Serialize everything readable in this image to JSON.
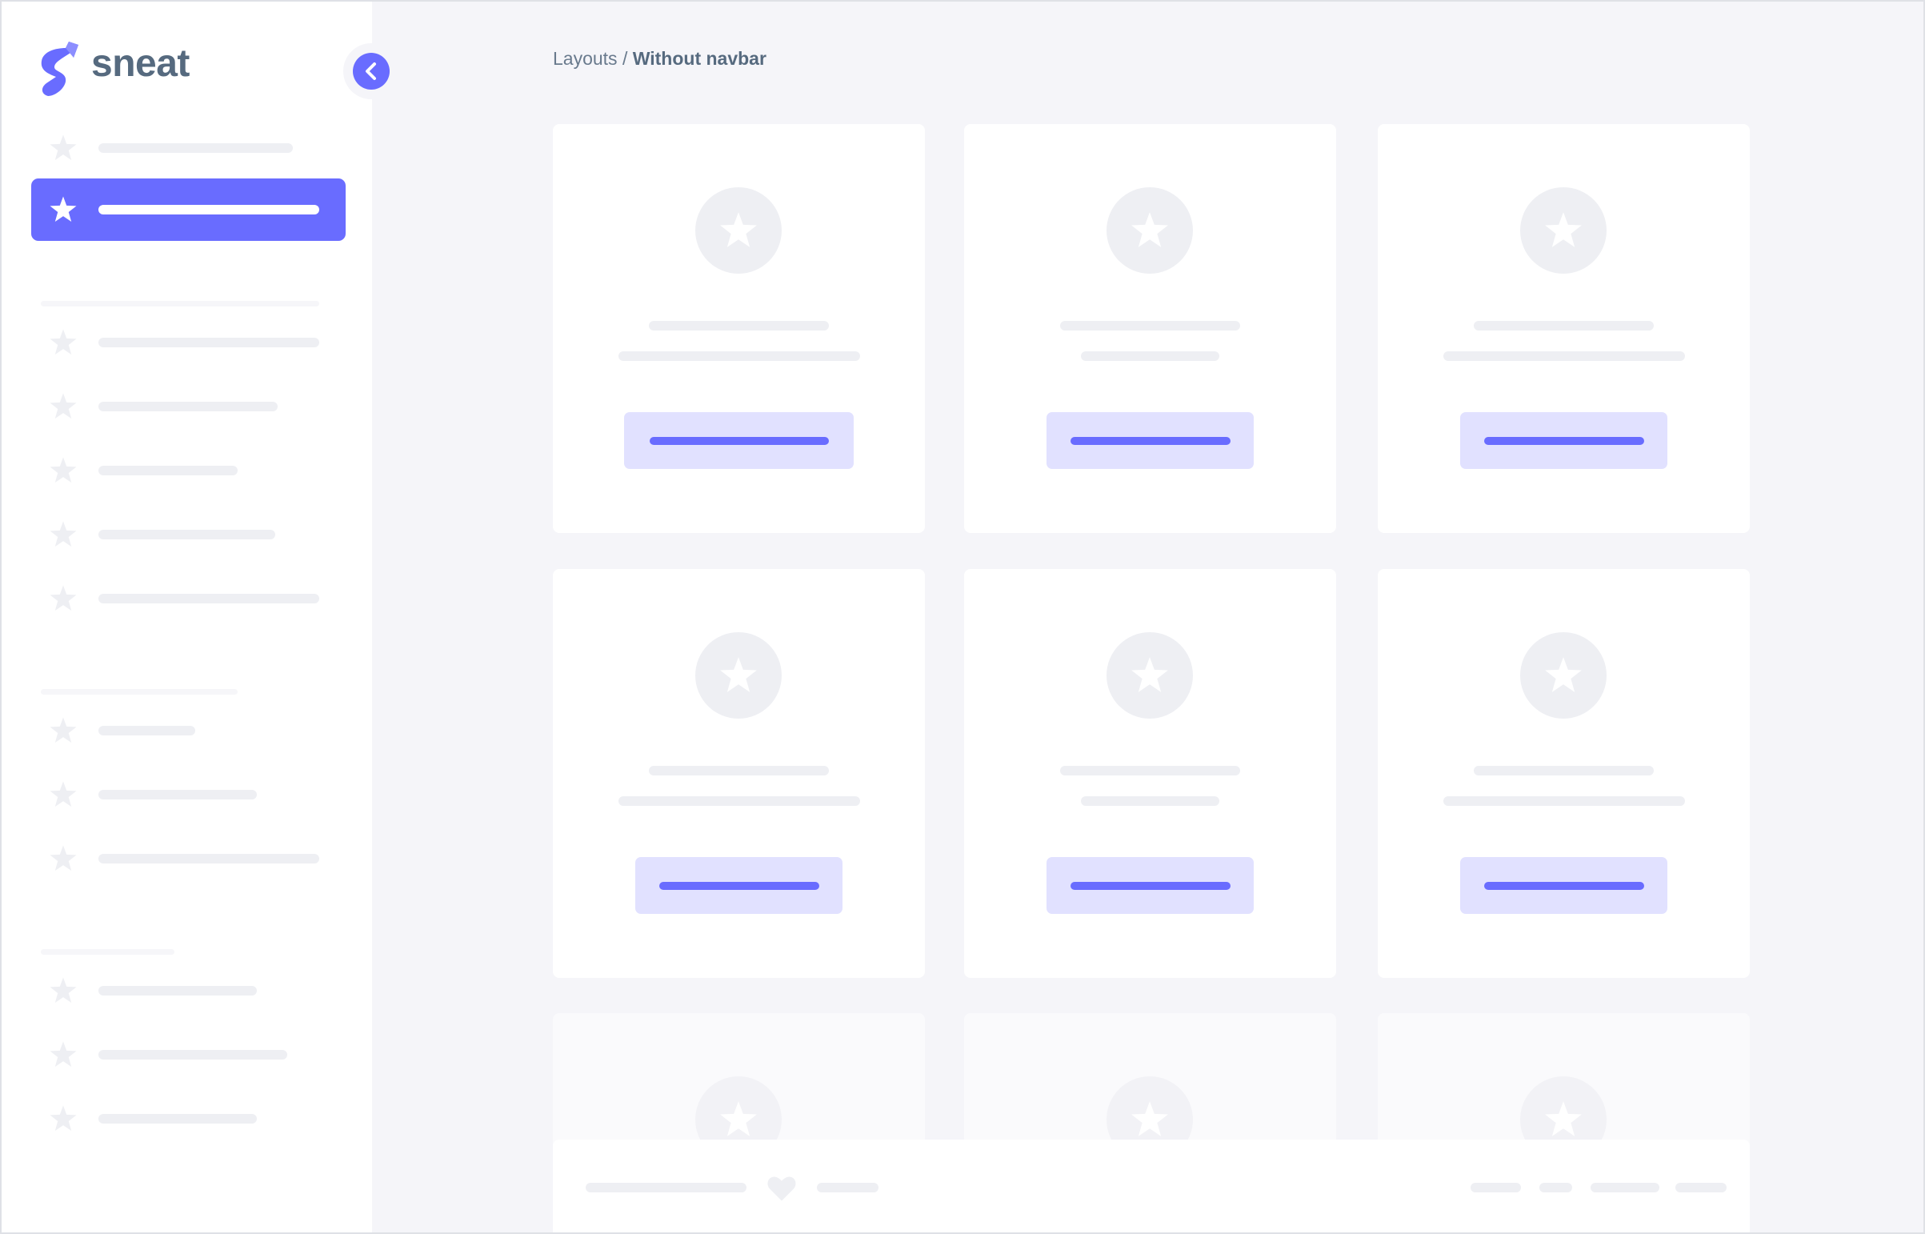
{
  "brand": {
    "name": "sneat",
    "logo_color": "#696cff"
  },
  "breadcrumb": {
    "parent": "Layouts",
    "separator": " / ",
    "current": "Without navbar"
  },
  "sidebar": {
    "toggle_icon": "chevron-left-icon",
    "item_icon": "star-icon",
    "active_index": 1,
    "groups": [
      2,
      5,
      3,
      3
    ]
  },
  "cards": {
    "count": 9,
    "icon": "star-icon",
    "visible_full_rows": 2
  },
  "footer": {
    "icon": "heart-icon"
  },
  "colors": {
    "accent": "#696cff",
    "accent_light": "#e1e1ff",
    "background": "#f5f5f9",
    "placeholder": "#eeeff3"
  }
}
